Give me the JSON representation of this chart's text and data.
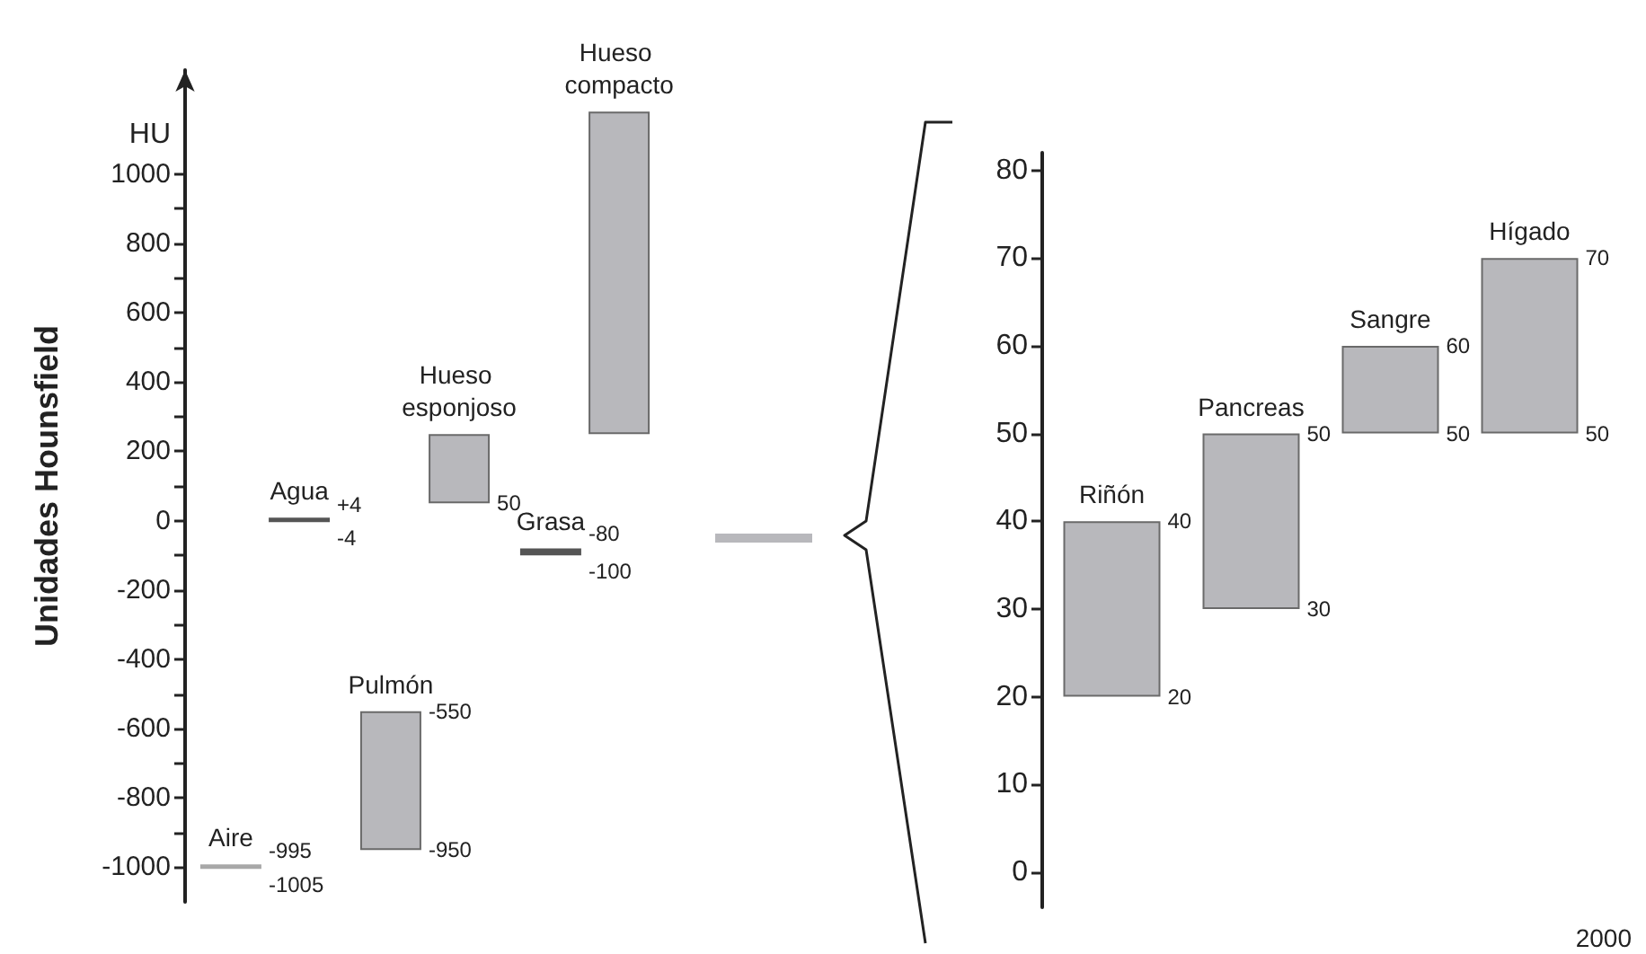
{
  "chart_data": [
    {
      "type": "bar",
      "ylabel": "Unidades Hounsfield",
      "categories": [
        null,
        null,
        null
      ],
      "series": [
        {
          "colors": [
            "#a8a8a8",
            "#b8b8bc",
            "#555555"
          ],
          "values": [
            10,
            400,
            20
          ],
          "base": [
            -1005,
            -950,
            -100
          ],
          "value_labels": [
            "Aire",
            "Pulmón",
            "Grasa"
          ]
        },
        {
          "colors": [
            "#555555",
            "#b8b8bc",
            "#b8b8bc"
          ],
          "values": [
            8,
            200,
            930
          ],
          "base": [
            -4,
            50,
            250
          ],
          "value_labels": [
            "Agua",
            "Hueso esponjoso",
            "Hueso compacto"
          ]
        }
      ],
      "ylim": [
        -1100,
        1300
      ],
      "yticks": [
        -1000,
        {
          "value": -900,
          "label": null
        },
        -800,
        {
          "value": -700,
          "label": null
        },
        -600,
        {
          "value": -500,
          "label": null
        },
        -400,
        {
          "value": -300,
          "label": null
        },
        -200,
        {
          "value": -100,
          "label": null
        },
        0,
        {
          "value": 100,
          "label": null
        },
        200,
        {
          "value": 300,
          "label": null
        },
        400,
        {
          "value": 500,
          "label": null
        },
        600,
        {
          "value": 700,
          "label": null
        },
        800,
        {
          "value": 900,
          "label": null
        },
        1000
      ],
      "annotations": [
        "HU",
        "-995",
        "-1005",
        "-550",
        "-950",
        "-80",
        "-100",
        "+4",
        "-4",
        "50"
      ]
    },
    {
      "type": "bar",
      "categories": [
        null,
        null,
        null,
        null
      ],
      "series": [
        {
          "color": "#b8b8bc",
          "values": [
            20,
            20,
            10,
            20
          ],
          "base": [
            20,
            30,
            50,
            50
          ],
          "value_labels": [
            "Riñón",
            "Pancreas",
            "Sangre",
            "Hígado"
          ]
        }
      ],
      "ylim": [
        -4,
        82
      ],
      "yticks": [
        0,
        10,
        20,
        30,
        40,
        50,
        60,
        70,
        80
      ],
      "annotations": [
        "40",
        "20",
        "50",
        "30",
        "60",
        "50",
        "70",
        "50",
        "2000"
      ]
    }
  ]
}
